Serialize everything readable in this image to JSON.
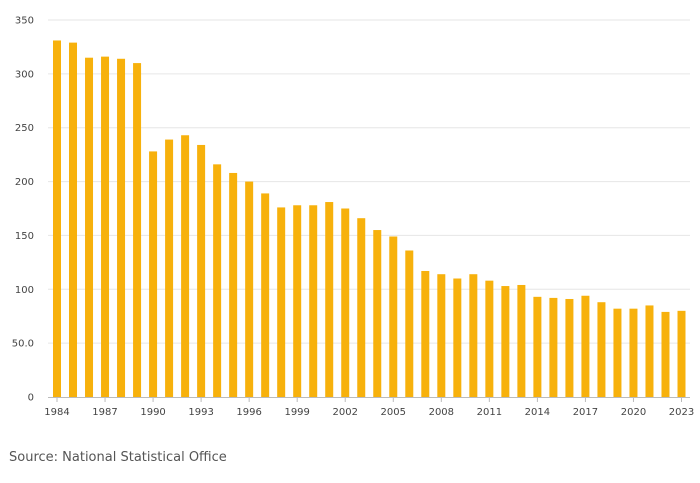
{
  "chart_data": {
    "type": "bar",
    "title": "",
    "xlabel": "",
    "ylabel": "",
    "ylim": [
      0,
      350
    ],
    "yticks": [
      {
        "value": 0,
        "label": "0"
      },
      {
        "value": 50,
        "label": "50.0"
      },
      {
        "value": 100,
        "label": "100"
      },
      {
        "value": 150,
        "label": "150"
      },
      {
        "value": 200,
        "label": "200"
      },
      {
        "value": 250,
        "label": "250"
      },
      {
        "value": 300,
        "label": "300"
      },
      {
        "value": 350,
        "label": "350"
      }
    ],
    "xtick_labels": [
      "1984",
      "1987",
      "1990",
      "1993",
      "1996",
      "1999",
      "2002",
      "2005",
      "2008",
      "2011",
      "2014",
      "2017",
      "2020",
      "2023"
    ],
    "grid": true,
    "bar_color": "#F7B10C",
    "grid_color": "#E6E6E6",
    "axis_color": "#BBBBBB",
    "categories": [
      "1984",
      "1985",
      "1986",
      "1987",
      "1988",
      "1989",
      "1990",
      "1991",
      "1992",
      "1993",
      "1994",
      "1995",
      "1996",
      "1997",
      "1998",
      "1999",
      "2000",
      "2001",
      "2002",
      "2003",
      "2004",
      "2005",
      "2006",
      "2007",
      "2008",
      "2009",
      "2010",
      "2011",
      "2012",
      "2013",
      "2014",
      "2015",
      "2016",
      "2017",
      "2018",
      "2019",
      "2020",
      "2021",
      "2022",
      "2023"
    ],
    "values": [
      331,
      329,
      315,
      316,
      314,
      310,
      228,
      239,
      243,
      234,
      216,
      208,
      200,
      189,
      176,
      178,
      178,
      181,
      175,
      166,
      155,
      149,
      136,
      117,
      114,
      110,
      114,
      108,
      103,
      104,
      93,
      92,
      91,
      94,
      88,
      82,
      82,
      85,
      79,
      80
    ]
  },
  "footer": {
    "source": "Source: National Statistical Office"
  }
}
